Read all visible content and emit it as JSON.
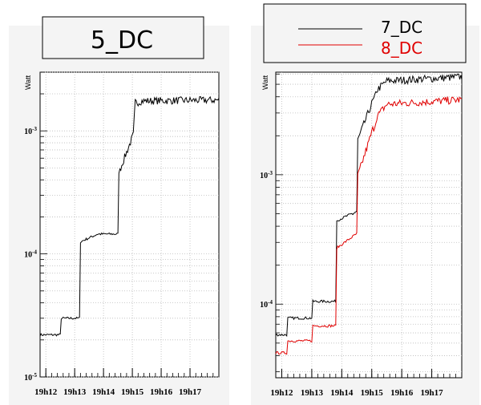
{
  "chart_data": [
    {
      "type": "line",
      "title": "5_DC",
      "xlabel": "",
      "ylabel": "Watt",
      "yscale": "log",
      "ylim": [
        1e-05,
        0.003
      ],
      "grid": true,
      "x_tick_labels": [
        "19h12",
        "19h13",
        "19h14",
        "19h15",
        "19h16",
        "19h17"
      ],
      "y_tick_labels": [
        {
          "value": 0.001,
          "base": "10",
          "exp": "-3"
        },
        {
          "value": 0.0001,
          "base": "10",
          "exp": "-4"
        },
        {
          "value": 1e-05,
          "base": "10",
          "exp": "-5"
        }
      ],
      "series": [
        {
          "color": "#000000",
          "x": [
            "19:11:48",
            "19:12:30",
            "19:12:31",
            "19:13:10",
            "19:13:11",
            "19:13:48",
            "19:13:49",
            "19:14:30",
            "19:14:31",
            "19:15:03",
            "19:15:05",
            "19:15:10",
            "19:15:20",
            "19:18:00"
          ],
          "values": [
            2.2e-05,
            2.2e-05,
            3e-05,
            3e-05,
            0.000125,
            0.000145,
            0.000145,
            0.000145,
            0.00045,
            0.00095,
            0.0017,
            0.0017,
            0.00175,
            0.00178
          ]
        }
      ]
    },
    {
      "type": "line",
      "title": "",
      "xlabel": "",
      "ylabel": "Watt",
      "yscale": "log",
      "ylim": [
        2.7e-05,
        0.0062
      ],
      "grid": true,
      "legend": {
        "position": "top",
        "entries": [
          "7_DC",
          "8_DC"
        ]
      },
      "x_tick_labels": [
        "19h12",
        "19h13",
        "19h14",
        "19h15",
        "19h16",
        "19h17"
      ],
      "y_tick_labels": [
        {
          "value": 0.001,
          "base": "10",
          "exp": "-3"
        },
        {
          "value": 0.0001,
          "base": "10",
          "exp": "-4"
        }
      ],
      "series": [
        {
          "name": "7_DC",
          "color": "#000000",
          "x": [
            "19:11:48",
            "19:12:10",
            "19:12:11",
            "19:13:00",
            "19:13:01",
            "19:13:48",
            "19:13:49",
            "19:14:30",
            "19:14:31",
            "19:15:03",
            "19:15:05",
            "19:15:10",
            "19:15:30",
            "19:18:00"
          ],
          "values": [
            5.8e-05,
            5.8e-05,
            7.8e-05,
            7.8e-05,
            0.000105,
            0.000105,
            0.00044,
            0.00052,
            0.0018,
            0.0038,
            0.0038,
            0.0045,
            0.0053,
            0.0057
          ]
        },
        {
          "name": "8_DC",
          "color": "#e00000",
          "x": [
            "19:11:48",
            "19:12:10",
            "19:12:11",
            "19:13:00",
            "19:13:01",
            "19:13:48",
            "19:13:49",
            "19:14:30",
            "19:14:31",
            "19:15:03",
            "19:15:05",
            "19:15:10",
            "19:15:30",
            "19:18:00"
          ],
          "values": [
            4.2e-05,
            4.2e-05,
            5.2e-05,
            5.2e-05,
            6.8e-05,
            6.8e-05,
            0.00027,
            0.00035,
            0.00095,
            0.0023,
            0.0023,
            0.0028,
            0.0035,
            0.0038
          ]
        }
      ]
    }
  ]
}
